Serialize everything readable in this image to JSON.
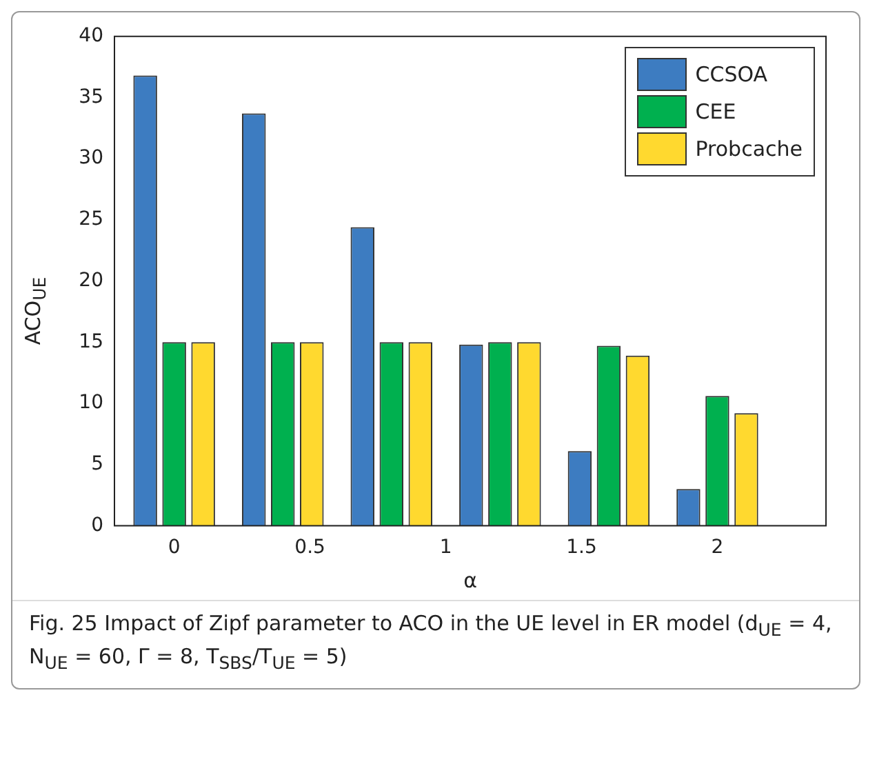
{
  "chart_data": {
    "type": "bar",
    "xlabel": "α",
    "ylabel": "ACO$_{UE}$",
    "x": [
      0,
      0.4,
      0.8,
      1.2,
      1.6,
      2
    ],
    "series": [
      {
        "name": "CCSOA",
        "color": "#3d7cc1",
        "values": [
          36.8,
          33.7,
          24.4,
          14.8,
          6.1,
          3.0
        ]
      },
      {
        "name": "CEE",
        "color": "#00b04f",
        "values": [
          15,
          15,
          15,
          15,
          14.7,
          10.6
        ]
      },
      {
        "name": "Probcache",
        "color": "#ffd92f",
        "values": [
          15,
          15,
          15,
          15,
          13.9,
          9.2
        ]
      }
    ],
    "xlim": [
      -0.22,
      2.4
    ],
    "xticks": [
      0,
      0.5,
      1,
      1.5,
      2
    ],
    "ylim": [
      0,
      40
    ],
    "yticks": [
      0,
      5,
      10,
      15,
      20,
      25,
      30,
      35,
      40
    ],
    "grid": false,
    "legend": "top right",
    "annotations": [
      "Fig. 25 Impact of Zipf parameter to ACO in the UE level in ER model (d$_{UE}$ = 4, N$_{UE}$ = 60, Γ = 8, T$_{SBS}$/T$_{UE}$ = 5)"
    ]
  }
}
